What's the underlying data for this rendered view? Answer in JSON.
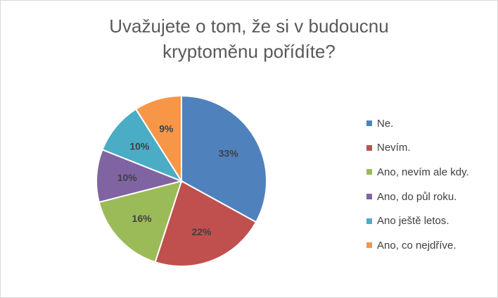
{
  "chart_data": {
    "type": "pie",
    "title_lines": [
      "Uvažujete o tom, že si v budoucnu",
      "kryptoměnu pořídíte?"
    ],
    "categories": [
      "Ne.",
      "Nevím.",
      "Ano, nevím ale kdy.",
      "Ano, do půl roku.",
      "Ano ještě letos.",
      "Ano, co nejdříve."
    ],
    "values": [
      33,
      22,
      16,
      10,
      10,
      9
    ],
    "labels": [
      "33%",
      "22%",
      "16%",
      "10%",
      "10%",
      "9%"
    ],
    "colors": [
      "#4f81bd",
      "#c0504d",
      "#9bbb59",
      "#8064a2",
      "#4bacc6",
      "#f79646"
    ],
    "legend_position": "right"
  }
}
